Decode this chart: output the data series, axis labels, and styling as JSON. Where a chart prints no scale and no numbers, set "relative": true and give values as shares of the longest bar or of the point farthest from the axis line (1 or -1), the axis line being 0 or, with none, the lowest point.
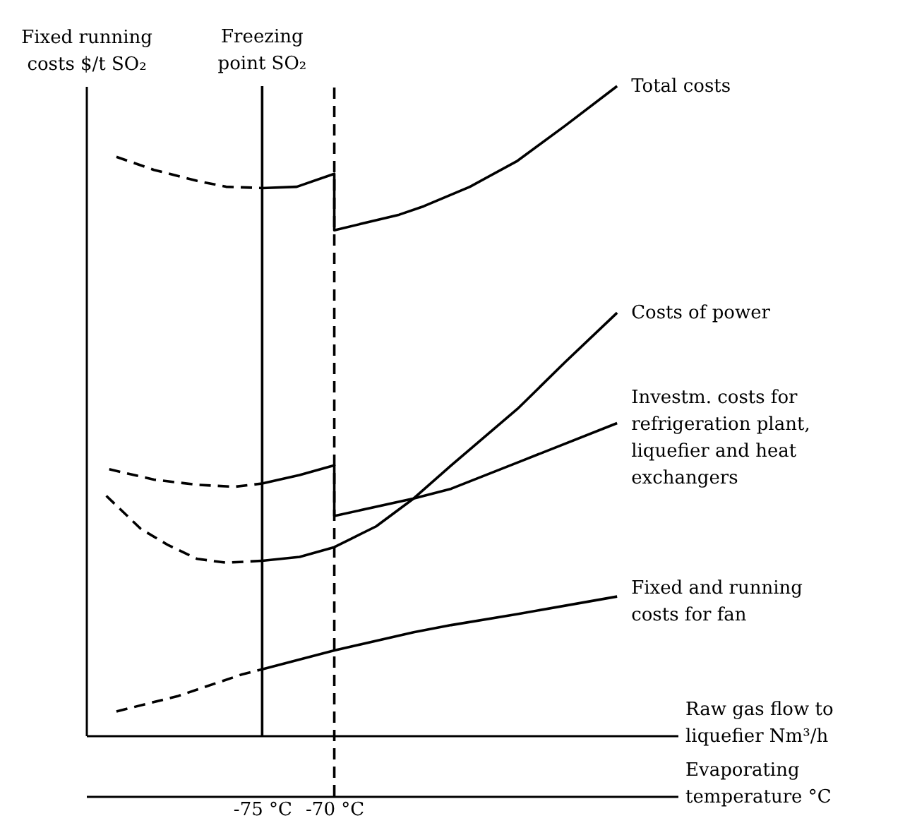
{
  "chart_data": {
    "type": "line",
    "relative": true,
    "xlabel": "Evaporating temperature °C",
    "x2label": "Raw gas flow to liquefier Nm³/h",
    "ylabel": "Fixed running costs $/t SO₂",
    "xlim": [
      -87.2,
      -46.2
    ],
    "xticks": [
      {
        "value": -75,
        "label": "-75 °C"
      },
      {
        "value": -70,
        "label": "-70 °C"
      }
    ],
    "series": [
      {
        "color": "#000000",
        "line_style": "dashed",
        "x": [
          -85.1,
          -82.5,
          -79.5,
          -77.5,
          -75
        ],
        "values": [
          0.891,
          0.871,
          0.854,
          0.845,
          0.843
        ]
      },
      {
        "name": "Total costs",
        "color": "#000000",
        "line_style": "solid",
        "x": [
          -75,
          -72.6,
          -70,
          -70,
          -65.5,
          -63.8,
          -60.6,
          -57.3,
          -54.0,
          -50.4
        ],
        "values": [
          0.843,
          0.845,
          0.865,
          0.778,
          0.802,
          0.815,
          0.845,
          0.885,
          0.939,
          1
        ]
      },
      {
        "color": "#000000",
        "line_style": "dashed",
        "x": [
          -85.8,
          -83.4,
          -81.5,
          -79.5,
          -77.5,
          -75
        ],
        "values": [
          0.369,
          0.318,
          0.293,
          0.272,
          0.266,
          0.269
        ]
      },
      {
        "name": "Costs of power",
        "color": "#000000",
        "line_style": "solid",
        "x": [
          -75,
          -72.4,
          -70,
          -67.1,
          -64.5,
          -61.9,
          -57.3,
          -54.0,
          -50.4
        ],
        "values": [
          0.269,
          0.275,
          0.29,
          0.322,
          0.365,
          0.416,
          0.503,
          0.575,
          0.651
        ]
      },
      {
        "color": "#000000",
        "line_style": "dashed",
        "x": [
          -85.6,
          -82.5,
          -79.5,
          -76.9,
          -75
        ],
        "values": [
          0.41,
          0.394,
          0.386,
          0.383,
          0.388
        ]
      },
      {
        "name": "Investm. costs for refrigeration plant, liquefier and heat exchangers",
        "color": "#000000",
        "line_style": "solid",
        "x": [
          -75,
          -72.4,
          -70,
          -70,
          -64.5,
          -61.9,
          -57.0,
          -50.4
        ],
        "values": [
          0.388,
          0.401,
          0.416,
          0.338,
          0.365,
          0.38,
          0.423,
          0.481
        ]
      },
      {
        "color": "#000000",
        "line_style": "dashed",
        "x": [
          -85.1,
          -80.8,
          -76.4,
          -75
        ],
        "values": [
          0.037,
          0.061,
          0.094,
          0.102
        ]
      },
      {
        "name": "Fixed and running costs for fan",
        "color": "#000000",
        "line_style": "solid",
        "x": [
          -75,
          -70,
          -64.5,
          -61.9,
          -57.3,
          -50.4
        ],
        "values": [
          0.102,
          0.131,
          0.159,
          0.17,
          0.187,
          0.214
        ]
      }
    ],
    "ref_lines": [
      {
        "axis": "x",
        "value": -75,
        "label": "Freezing point SO₂"
      },
      {
        "axis": "x",
        "value": -70,
        "line_style": "dashed"
      }
    ]
  }
}
